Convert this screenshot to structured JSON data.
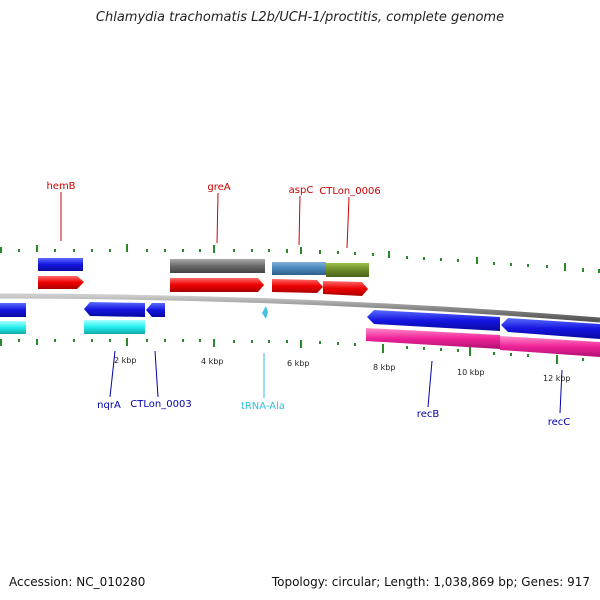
{
  "title": "Chlamydia trachomatis L2b/UCH-1/proctitis, complete genome",
  "footer": {
    "accession": "Accession: NC_010280",
    "summary": "Topology: circular; Length: 1,038,869 bp; Genes: 917"
  },
  "colors": {
    "forward": "#ee0000",
    "reverse": "#1010dd",
    "trna": "#44c0e0",
    "backbone": "#8a8a8a",
    "ticks": "#2a8a2a",
    "rrna_cyan": "#22eeee",
    "magenta": "#ee2299",
    "gray": "#666666",
    "steel": "#4a86b8",
    "olive": "#6a8a2a"
  },
  "scale": {
    "labels": [
      "2 kbp",
      "4 kbp",
      "6 kbp",
      "8 kbp",
      "10 kbp",
      "12 kbp"
    ]
  },
  "genes": [
    {
      "label": "hemB",
      "color": "#cc0000"
    },
    {
      "label": "greA",
      "color": "#cc0000"
    },
    {
      "label": "aspC",
      "color": "#cc0000"
    },
    {
      "label": "CTLon_0006",
      "color": "#cc0000"
    },
    {
      "label": "nqrA",
      "color": "#0000aa"
    },
    {
      "label": "CTLon_0003",
      "color": "#0000aa"
    },
    {
      "label": "tRNA-Ala",
      "color": "#33bbdd"
    },
    {
      "label": "recB",
      "color": "#0000aa"
    },
    {
      "label": "recC",
      "color": "#0000aa"
    }
  ]
}
